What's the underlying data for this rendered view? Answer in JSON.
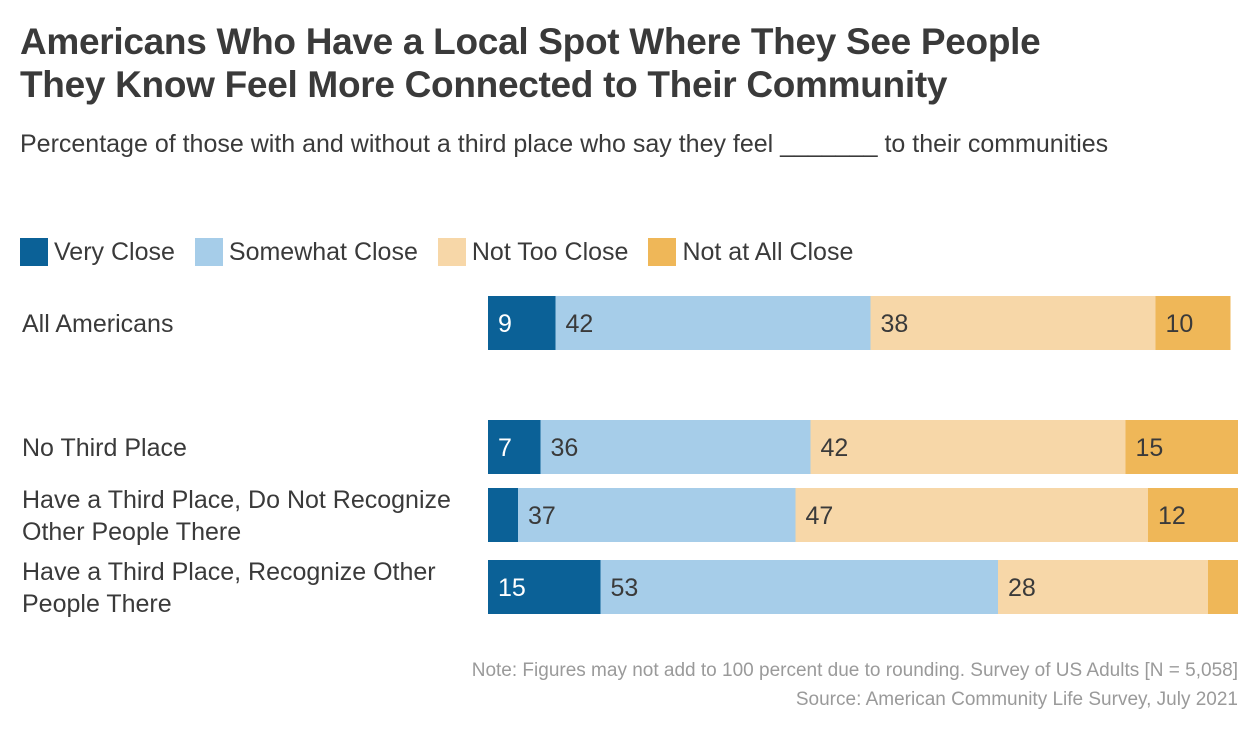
{
  "title_line1": "Americans Who Have a Local Spot Where They See People",
  "title_line2": "They Know Feel More Connected to Their Community",
  "subtitle": "Percentage of those with and without a third place who say they feel _______ to their communities",
  "note": "Note: Figures may not add to 100 percent due to rounding. Survey of US Adults [N = 5,058]",
  "source": "Source: American Community Life Survey, July 2021",
  "colors": {
    "very_close": "#0b6197",
    "somewhat_close": "#a6cde9",
    "not_too_close": "#f7d7a8",
    "not_at_all_close": "#efb758"
  },
  "legend": [
    {
      "label": "Very Close",
      "color": "#0b6197"
    },
    {
      "label": "Somewhat Close",
      "color": "#a6cde9"
    },
    {
      "label": "Not Too Close",
      "color": "#f7d7a8"
    },
    {
      "label": "Not at All Close",
      "color": "#efb758"
    }
  ],
  "chart_data": {
    "type": "bar",
    "orientation": "horizontal",
    "stacked": true,
    "categories": [
      [
        "All Americans"
      ],
      [
        "No Third Place"
      ],
      [
        "Have a Third Place, Do Not Recognize",
        "Other People There"
      ],
      [
        "Have a Third Place, Recognize Other",
        "People There"
      ]
    ],
    "series": [
      {
        "name": "Very Close",
        "values": [
          9,
          7,
          4,
          15
        ],
        "labels": [
          "9",
          "7",
          "",
          "15"
        ],
        "color": "#0b6197",
        "label_color": "#ffffff"
      },
      {
        "name": "Somewhat Close",
        "values": [
          42,
          36,
          37,
          53
        ],
        "labels": [
          "42",
          "36",
          "37",
          "53"
        ],
        "color": "#a6cde9",
        "label_color": "#3a3a3a"
      },
      {
        "name": "Not Too Close",
        "values": [
          38,
          42,
          47,
          28
        ],
        "labels": [
          "38",
          "42",
          "47",
          "28"
        ],
        "color": "#f7d7a8",
        "label_color": "#3a3a3a"
      },
      {
        "name": "Not at All Close",
        "values": [
          10,
          15,
          12,
          4
        ],
        "labels": [
          "10",
          "15",
          "12",
          ""
        ],
        "color": "#efb758",
        "label_color": "#3a3a3a"
      }
    ],
    "xlim": [
      0,
      100
    ],
    "grid": false,
    "legend_position": "top-left"
  }
}
